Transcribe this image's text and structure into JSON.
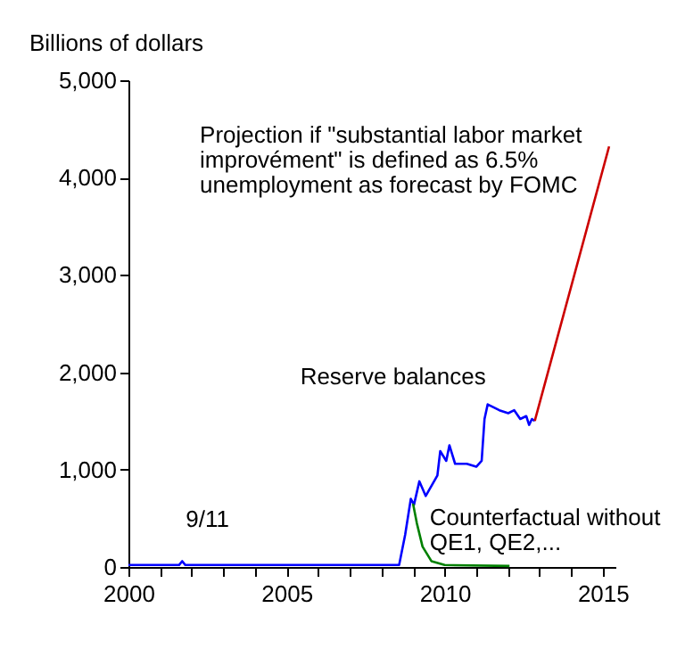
{
  "chart_data": {
    "type": "line",
    "ylabel": "Billions of dollars",
    "xlim": [
      2000,
      2015.4
    ],
    "ylim": [
      0,
      5000
    ],
    "xticks": [
      {
        "value": 2000,
        "label": "2000"
      },
      {
        "value": 2001,
        "label": null
      },
      {
        "value": 2002,
        "label": null
      },
      {
        "value": 2003,
        "label": null
      },
      {
        "value": 2004,
        "label": null
      },
      {
        "value": 2005,
        "label": "2005"
      },
      {
        "value": 2006,
        "label": null
      },
      {
        "value": 2007,
        "label": null
      },
      {
        "value": 2008,
        "label": null
      },
      {
        "value": 2009,
        "label": null
      },
      {
        "value": 2010,
        "label": "2010"
      },
      {
        "value": 2011,
        "label": null
      },
      {
        "value": 2012,
        "label": null
      },
      {
        "value": 2013,
        "label": null
      },
      {
        "value": 2014,
        "label": null
      },
      {
        "value": 2015,
        "label": "2015"
      }
    ],
    "yticks": [
      0,
      {
        "value": 1000,
        "label": "1,000"
      },
      {
        "value": 2000,
        "label": "2,000"
      },
      {
        "value": 3000,
        "label": "3,000"
      },
      {
        "value": 4000,
        "label": "4,000"
      },
      {
        "value": 5000,
        "label": "5,000"
      }
    ],
    "grid": false,
    "legend": false,
    "marker": "none",
    "line_style": "solid",
    "series": [
      {
        "color": "#0000ff",
        "x": [
          2000,
          2001.6,
          2001.7,
          2001.8,
          2008.56,
          2008.75,
          2008.93,
          2009.03,
          2009.2,
          2009.4,
          2009.77,
          2009.86,
          2010.05,
          2010.15,
          2010.33,
          2010.7,
          2011.0,
          2011.17,
          2011.26,
          2011.36,
          2011.73,
          2012.01,
          2012.2,
          2012.39,
          2012.58,
          2012.67,
          2012.76,
          2012.85
        ],
        "values": [
          20,
          20,
          60,
          20,
          20,
          330,
          700,
          640,
          880,
          730,
          940,
          1190,
          1090,
          1250,
          1060,
          1060,
          1030,
          1090,
          1520,
          1670,
          1610,
          1580,
          1610,
          1520,
          1550,
          1460,
          1520,
          1500
        ]
      },
      {
        "color": "#008000",
        "x": [
          2009.0,
          2009.12,
          2009.3,
          2009.58,
          2010.0,
          2012.05
        ],
        "values": [
          650,
          450,
          210,
          60,
          20,
          10
        ]
      },
      {
        "color": "#cc0000",
        "x": [
          2012.85,
          2015.2
        ],
        "values": [
          1500,
          4320
        ]
      }
    ],
    "annotations": [
      {
        "text": "Projection if \"substantial  labor market\nimprovément\" is defined as 6.5%\nunemployment as forecast by FOMC",
        "x": 2014.5,
        "y": 3500
      },
      {
        "text": "Reserve balances",
        "x": 2011.3,
        "y": 1600
      },
      {
        "text": "9/11",
        "x": 2001.7,
        "y": 60
      },
      {
        "text": "Counterfactual without\n QE1, QE2,...",
        "x": 2009.3,
        "y": 210
      }
    ]
  }
}
